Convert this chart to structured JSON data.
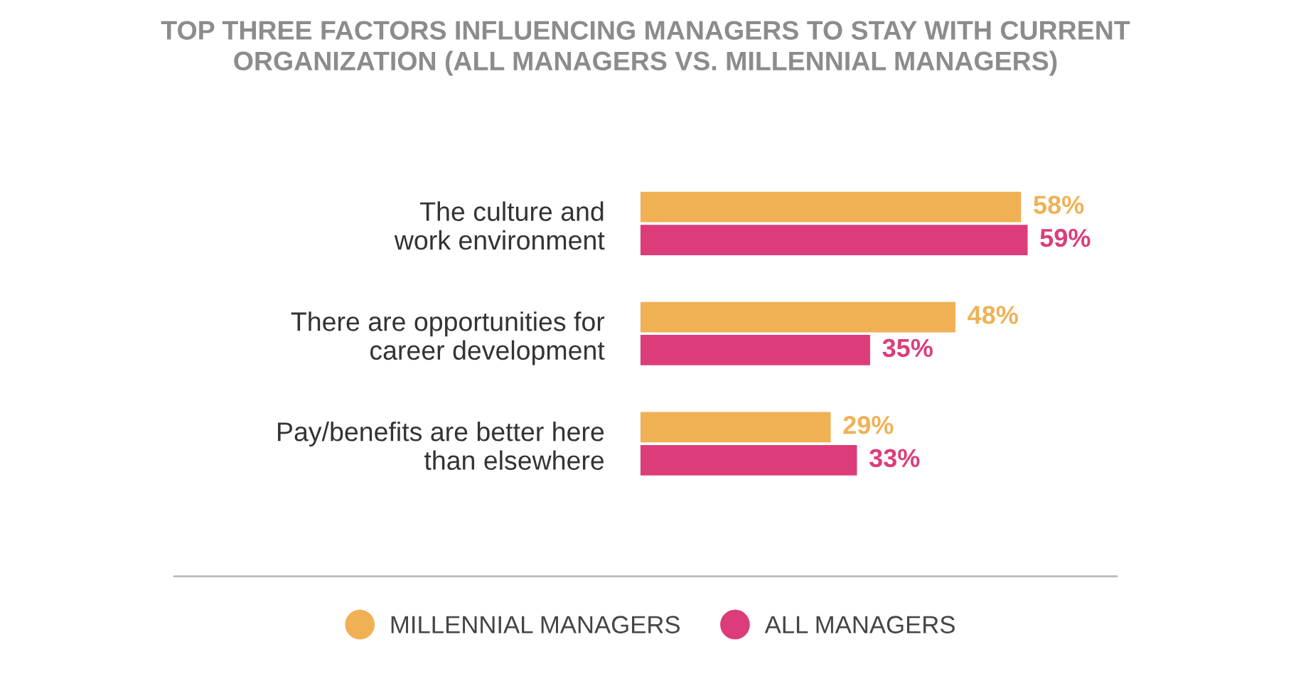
{
  "chart_data": {
    "type": "bar",
    "orientation": "horizontal",
    "title": "TOP THREE FACTORS INFLUENCING MANAGERS TO STAY WITH CURRENT\nORGANIZATION (ALL MANAGERS VS. MILLENNIAL MANAGERS)",
    "categories": [
      "The culture and\nwork environment",
      "There are opportunities for\ncareer development",
      "Pay/benefits are better here\nthan elsewhere"
    ],
    "series": [
      {
        "name": "MILLENNIAL MANAGERS",
        "color": "#f0b155",
        "values": [
          58,
          48,
          29
        ],
        "value_labels": [
          "58%",
          "48%",
          "29%"
        ]
      },
      {
        "name": "ALL MANAGERS",
        "color": "#dc3c7a",
        "values": [
          59,
          35,
          33
        ],
        "value_labels": [
          "59%",
          "35%",
          "33%"
        ]
      }
    ],
    "legend": "bottom"
  }
}
